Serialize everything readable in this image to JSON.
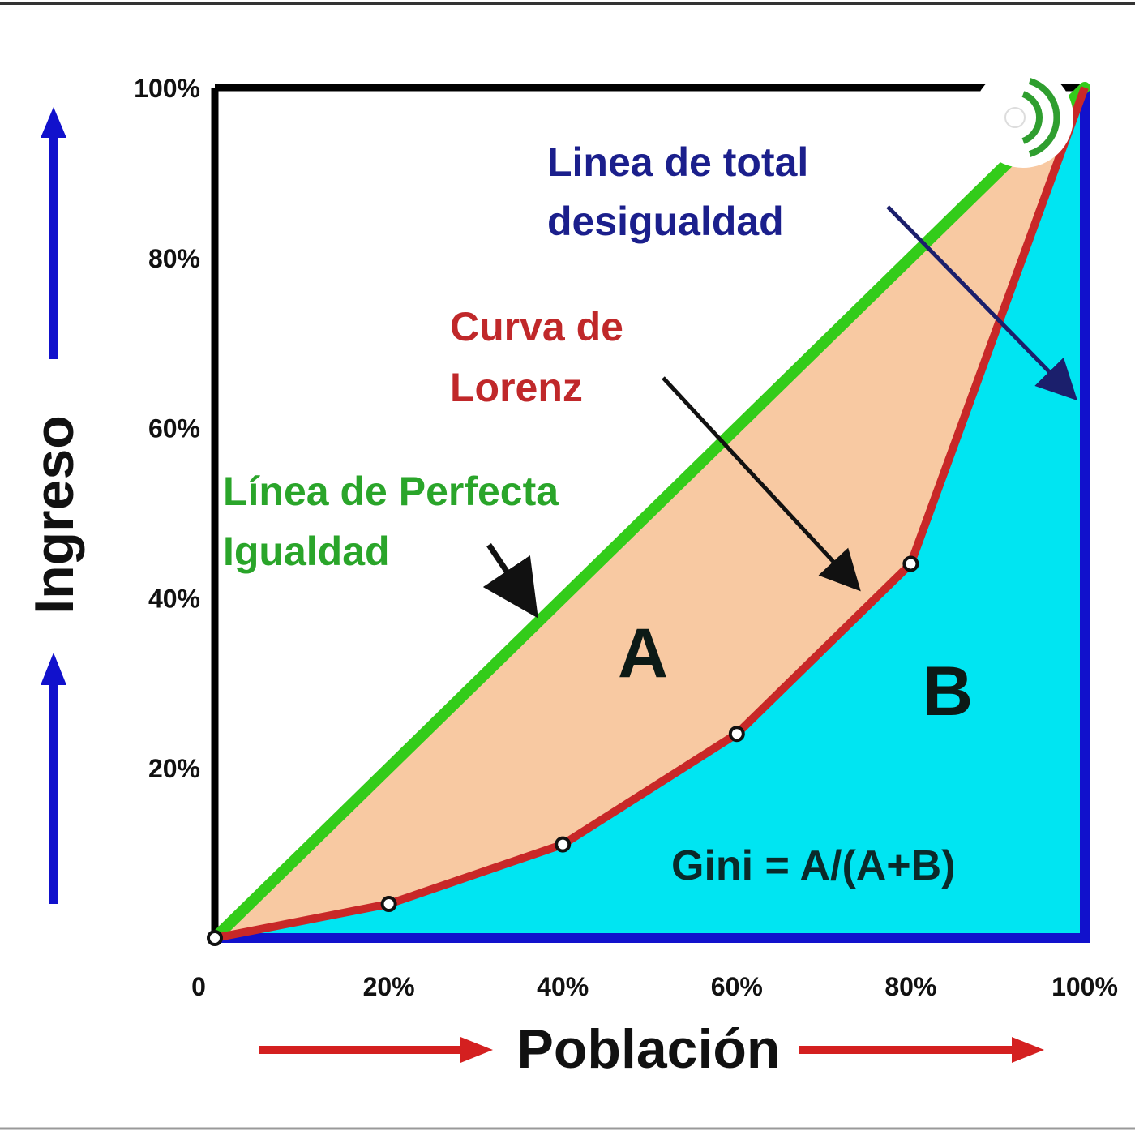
{
  "colors": {
    "equality_line": "#33cc1a",
    "lorenz_curve": "#c82828",
    "area_a": "#f8c9a2",
    "area_b": "#00e5f2",
    "axis_blue": "#1111cc",
    "arrow_red": "#d42020",
    "frame": "#000000"
  },
  "chart_data": {
    "type": "line",
    "title": "",
    "xlabel": "Población",
    "ylabel": "Ingreso",
    "xlim": [
      0,
      100
    ],
    "ylim": [
      0,
      100
    ],
    "x_ticks": [
      "0",
      "20%",
      "40%",
      "60%",
      "80%",
      "100%"
    ],
    "y_ticks": [
      "20%",
      "40%",
      "60%",
      "80%",
      "100%"
    ],
    "grid": false,
    "series": [
      {
        "name": "Línea de Perfecta Igualdad",
        "x": [
          0,
          100
        ],
        "y": [
          0,
          100
        ]
      },
      {
        "name": "Curva de Lorenz",
        "x": [
          0,
          20,
          40,
          60,
          80,
          100
        ],
        "y": [
          0,
          4,
          11,
          24,
          44,
          100
        ]
      },
      {
        "name": "Linea de total desigualdad",
        "x": [
          0,
          100,
          100
        ],
        "y": [
          0,
          0,
          100
        ]
      }
    ],
    "annotations": {
      "total_inequality": [
        "Linea de total",
        "desigualdad"
      ],
      "lorenz": [
        "Curva de",
        "Lorenz"
      ],
      "equality": [
        "Línea de Perfecta",
        "Igualdad"
      ],
      "area_a": "A",
      "area_b": "B",
      "gini": "Gini = A/(A+B)"
    }
  },
  "badge": {
    "icon": "podcast-icon"
  }
}
